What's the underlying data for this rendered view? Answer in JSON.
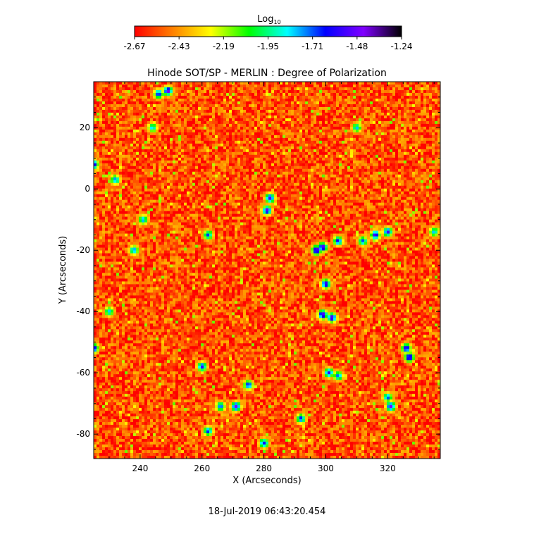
{
  "chart_data": {
    "type": "heatmap",
    "title": "Hinode SOT/SP - MERLIN : Degree of Polarization",
    "xlabel": "X (Arcseconds)",
    "ylabel": "Y (Arcseconds)",
    "xlim": [
      225,
      337
    ],
    "ylim": [
      -88,
      35
    ],
    "x_ticks": [
      240,
      260,
      280,
      300,
      320
    ],
    "y_ticks": [
      20,
      0,
      -20,
      -40,
      -60,
      -80
    ],
    "colorbar": {
      "label_base": "Log",
      "label_sub": "10",
      "ticks": [
        "-2.67",
        "-2.43",
        "-2.19",
        "-1.95",
        "-1.71",
        "-1.48",
        "-1.24"
      ],
      "range": [
        -2.67,
        -1.24
      ],
      "colors": [
        "#ff0000",
        "#ff8000",
        "#ffff00",
        "#00ff00",
        "#00ffff",
        "#0000ff",
        "#8000ff",
        "#000000"
      ]
    },
    "background_level": -2.55,
    "features": [
      {
        "x": 249,
        "y": 32,
        "value": -1.45
      },
      {
        "x": 246,
        "y": 31,
        "value": -1.6
      },
      {
        "x": 225,
        "y": 8,
        "value": -1.5
      },
      {
        "x": 225,
        "y": -52,
        "value": -1.5
      },
      {
        "x": 282,
        "y": -3,
        "value": -1.5
      },
      {
        "x": 281,
        "y": -7,
        "value": -1.45
      },
      {
        "x": 297,
        "y": -20,
        "value": -1.4
      },
      {
        "x": 299,
        "y": -19,
        "value": -1.45
      },
      {
        "x": 304,
        "y": -17,
        "value": -1.6
      },
      {
        "x": 300,
        "y": -31,
        "value": -1.5
      },
      {
        "x": 299,
        "y": -41,
        "value": -1.45
      },
      {
        "x": 302,
        "y": -42,
        "value": -1.45
      },
      {
        "x": 316,
        "y": -15,
        "value": -1.5
      },
      {
        "x": 320,
        "y": -14,
        "value": -1.55
      },
      {
        "x": 312,
        "y": -17,
        "value": -1.7
      },
      {
        "x": 326,
        "y": -52,
        "value": -1.5
      },
      {
        "x": 327,
        "y": -55,
        "value": -1.45
      },
      {
        "x": 301,
        "y": -60,
        "value": -1.55
      },
      {
        "x": 304,
        "y": -61,
        "value": -1.7
      },
      {
        "x": 321,
        "y": -71,
        "value": -1.45
      },
      {
        "x": 320,
        "y": -68,
        "value": -1.7
      },
      {
        "x": 271,
        "y": -71,
        "value": -1.45
      },
      {
        "x": 266,
        "y": -71,
        "value": -1.7
      },
      {
        "x": 260,
        "y": -58,
        "value": -1.55
      },
      {
        "x": 275,
        "y": -64,
        "value": -1.6
      },
      {
        "x": 244,
        "y": 20,
        "value": -1.8
      },
      {
        "x": 241,
        "y": -10,
        "value": -1.75
      },
      {
        "x": 238,
        "y": -20,
        "value": -1.75
      },
      {
        "x": 292,
        "y": -75,
        "value": -1.65
      },
      {
        "x": 280,
        "y": -83,
        "value": -1.6
      },
      {
        "x": 262,
        "y": -15,
        "value": -1.7
      },
      {
        "x": 232,
        "y": 3,
        "value": -1.7
      },
      {
        "x": 230,
        "y": -40,
        "value": -1.8
      },
      {
        "x": 310,
        "y": 20,
        "value": -1.8
      },
      {
        "x": 262,
        "y": -79,
        "value": -1.65
      },
      {
        "x": 335,
        "y": -14,
        "value": -1.8
      }
    ]
  },
  "footer": {
    "timestamp": "18-Jul-2019 06:43:20.454"
  }
}
